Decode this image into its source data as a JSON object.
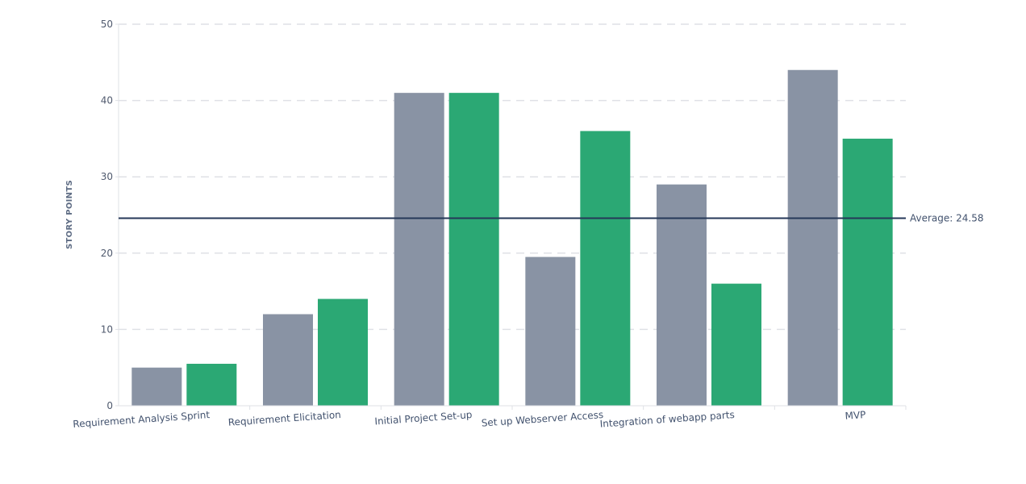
{
  "chart_data": {
    "type": "bar",
    "title": "",
    "xlabel": "",
    "ylabel": "STORY POINTS",
    "ylim": [
      0,
      50
    ],
    "yticks": [
      0,
      10,
      20,
      30,
      40,
      50
    ],
    "grid": true,
    "categories": [
      "Requirement Analysis Sprint",
      "Requirement Elicitation",
      "Initial Project Set-up",
      "Set up Webserver Access",
      "Integration of webapp parts",
      "MVP"
    ],
    "series": [
      {
        "color": "#8993a4",
        "values": [
          5,
          12,
          41,
          19.5,
          29,
          44
        ]
      },
      {
        "color": "#2ba874",
        "values": [
          5.5,
          14,
          41,
          36,
          16,
          35
        ]
      }
    ],
    "average": {
      "value": 24.58,
      "label": "Average: 24.58",
      "color": "#253858"
    }
  }
}
